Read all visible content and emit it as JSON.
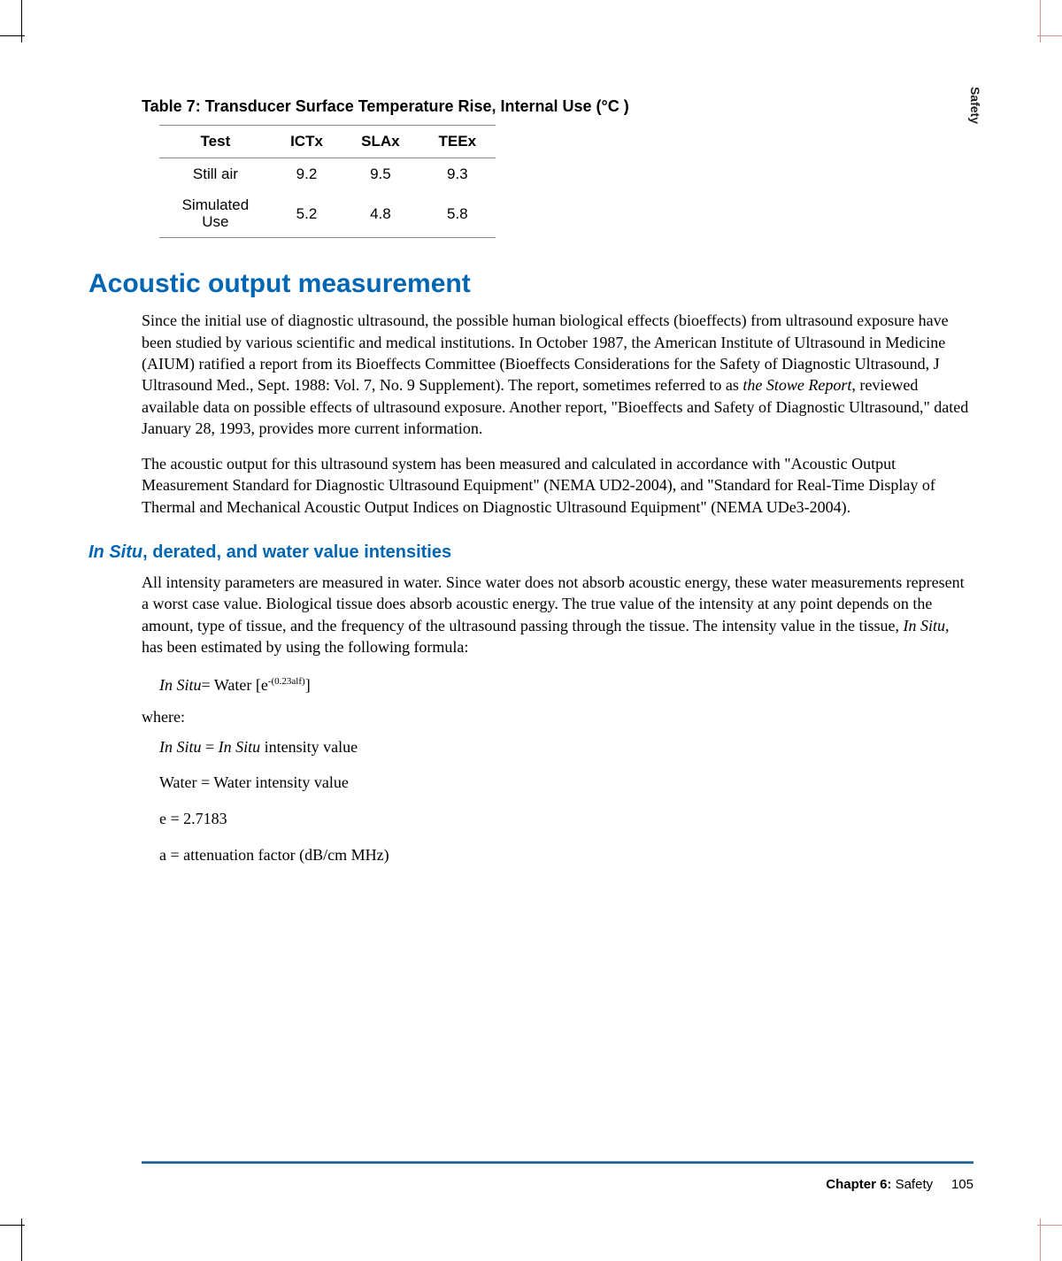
{
  "side_tab": "Safety",
  "table": {
    "caption": "Table 7: Transducer Surface Temperature Rise, Internal Use (°C )",
    "headers": [
      "Test",
      "ICTx",
      "SLAx",
      "TEEx"
    ],
    "rows": [
      [
        "Still air",
        "9.2",
        "9.5",
        "9.3"
      ],
      [
        "Simulated Use",
        "5.2",
        "4.8",
        "5.8"
      ]
    ]
  },
  "section_heading": "Acoustic output measurement",
  "para1": "Since the initial use of diagnostic ultrasound, the possible human biological effects (bioeffects) from ultrasound exposure have been studied by various scientific and medical institutions. In October 1987, the American Institute of Ultrasound in Medicine (AIUM) ratified a report from its Bioeffects Committee (Bioeffects Considerations for the Safety of Diagnostic Ultrasound, J Ultrasound Med., Sept. 1988: Vol. 7, No. 9 Supplement). The report, sometimes referred to as ",
  "para1_ital": "the Stowe Report",
  "para1_cont": ", reviewed available data on possible effects of ultrasound exposure. Another report, \"Bioeffects and Safety of Diagnostic Ultrasound,\" dated January 28, 1993, provides more current information.",
  "para2": "The acoustic output for this ultrasound system has been measured and calculated in accordance with \"Acoustic Output Measurement Standard for Diagnostic Ultrasound Equipment\" (NEMA UD2-2004), and \"Standard for Real-Time Display of Thermal and Mechanical Acoustic Output Indices on Diagnostic Ultrasound Equipment\" (NEMA UDe3-2004).",
  "subsection_ital": "In Situ",
  "subsection_rest": ", derated, and water value intensities",
  "para3a": "All intensity parameters are measured in water. Since water does not absorb acoustic energy, these water measurements represent a worst case value. Biological tissue does absorb acoustic energy. The true value of the intensity at any point depends on the amount, type of tissue, and the frequency of the ultrasound passing through the tissue. The intensity value in the tissue, ",
  "para3_ital": "In Situ",
  "para3b": ", has been estimated by using the following formula:",
  "formula_lhs": "In Situ",
  "formula_eq": "= Water [e",
  "formula_sup": "-(0.23alf)",
  "formula_close": "]",
  "where_label": "where:",
  "def1a": "In Situ",
  "def1b": " = ",
  "def1c": "In Situ",
  "def1d": " intensity value",
  "def2": "Water = Water intensity value",
  "def3": "e = 2.7183",
  "def4": "a = attenuation factor (dB/cm MHz)",
  "footer_chapter": "Chapter 6:",
  "footer_title": "  Safety",
  "footer_page": "105"
}
